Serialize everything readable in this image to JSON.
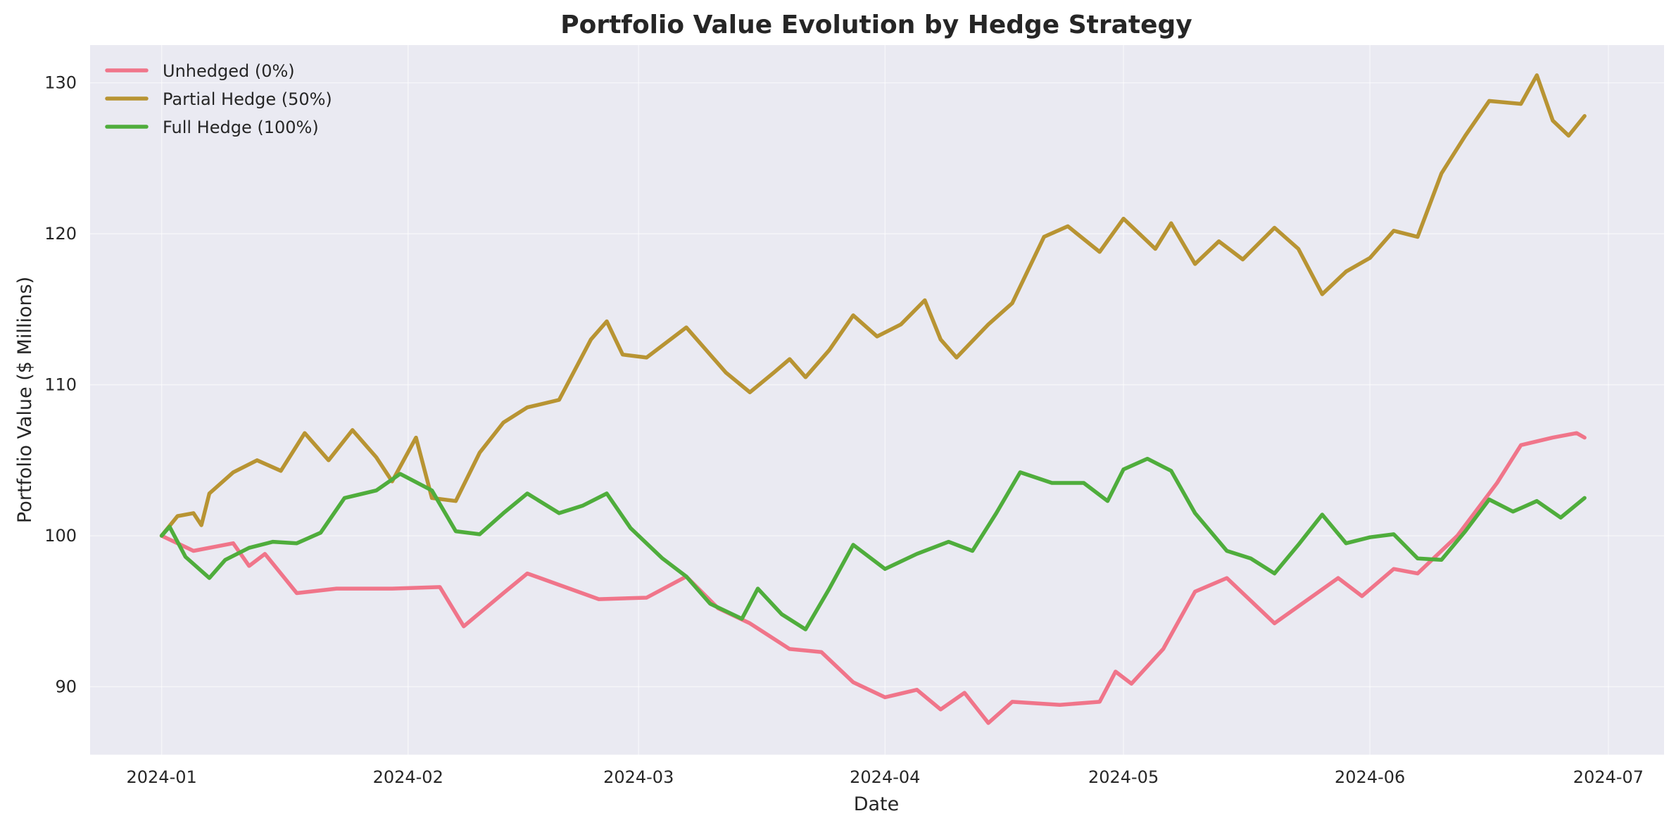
{
  "chart_data": {
    "type": "line",
    "title": "Portfolio Value Evolution by Hedge Strategy",
    "xlabel": "Date",
    "ylabel": "Portfolio Value ($ Millions)",
    "x_start": "2024-01-01",
    "x_range": [
      "2023-12-23",
      "2024-07-08"
    ],
    "ylim": [
      85.5,
      132.5
    ],
    "x_ticks": [
      "2024-01",
      "2024-02",
      "2024-03",
      "2024-04",
      "2024-05",
      "2024-06",
      "2024-07"
    ],
    "x_tick_dates": [
      "2024-01-01",
      "2024-02-01",
      "2024-03-01",
      "2024-04-01",
      "2024-05-01",
      "2024-06-01",
      "2024-07-01"
    ],
    "y_ticks": [
      90,
      100,
      110,
      120,
      130
    ],
    "grid": true,
    "background": "#eaeaf2",
    "legend_position": "top-left",
    "series": [
      {
        "name": "Unhedged (0%)",
        "color": "#f0758a",
        "points": [
          [
            "2024-01-01",
            100.0
          ],
          [
            "2024-01-05",
            99.0
          ],
          [
            "2024-01-10",
            99.5
          ],
          [
            "2024-01-12",
            98.0
          ],
          [
            "2024-01-14",
            98.8
          ],
          [
            "2024-01-18",
            96.2
          ],
          [
            "2024-01-23",
            96.5
          ],
          [
            "2024-01-30",
            96.5
          ],
          [
            "2024-02-05",
            96.6
          ],
          [
            "2024-02-08",
            94.0
          ],
          [
            "2024-02-13",
            96.2
          ],
          [
            "2024-02-16",
            97.5
          ],
          [
            "2024-02-25",
            95.8
          ],
          [
            "2024-03-02",
            95.9
          ],
          [
            "2024-03-07",
            97.3
          ],
          [
            "2024-03-11",
            95.2
          ],
          [
            "2024-03-15",
            94.2
          ],
          [
            "2024-03-20",
            92.5
          ],
          [
            "2024-03-24",
            92.3
          ],
          [
            "2024-03-28",
            90.3
          ],
          [
            "2024-04-01",
            89.3
          ],
          [
            "2024-04-05",
            89.8
          ],
          [
            "2024-04-08",
            88.5
          ],
          [
            "2024-04-11",
            89.6
          ],
          [
            "2024-04-14",
            87.6
          ],
          [
            "2024-04-17",
            89.0
          ],
          [
            "2024-04-23",
            88.8
          ],
          [
            "2024-04-28",
            89.0
          ],
          [
            "2024-04-30",
            91.0
          ],
          [
            "2024-05-02",
            90.2
          ],
          [
            "2024-05-06",
            92.5
          ],
          [
            "2024-05-10",
            96.3
          ],
          [
            "2024-05-14",
            97.2
          ],
          [
            "2024-05-20",
            94.2
          ],
          [
            "2024-05-28",
            97.2
          ],
          [
            "2024-05-31",
            96.0
          ],
          [
            "2024-06-04",
            97.8
          ],
          [
            "2024-06-07",
            97.5
          ],
          [
            "2024-06-12",
            100.0
          ],
          [
            "2024-06-17",
            103.5
          ],
          [
            "2024-06-20",
            106.0
          ],
          [
            "2024-06-24",
            106.5
          ],
          [
            "2024-06-27",
            106.8
          ],
          [
            "2024-06-28",
            106.5
          ]
        ]
      },
      {
        "name": "Partial Hedge (50%)",
        "color": "#b89433",
        "points": [
          [
            "2024-01-01",
            100.0
          ],
          [
            "2024-01-03",
            101.3
          ],
          [
            "2024-01-05",
            101.5
          ],
          [
            "2024-01-06",
            100.7
          ],
          [
            "2024-01-07",
            102.8
          ],
          [
            "2024-01-10",
            104.2
          ],
          [
            "2024-01-13",
            105.0
          ],
          [
            "2024-01-16",
            104.3
          ],
          [
            "2024-01-19",
            106.8
          ],
          [
            "2024-01-22",
            105.0
          ],
          [
            "2024-01-25",
            107.0
          ],
          [
            "2024-01-28",
            105.2
          ],
          [
            "2024-01-30",
            103.6
          ],
          [
            "2024-02-02",
            106.5
          ],
          [
            "2024-02-04",
            102.5
          ],
          [
            "2024-02-07",
            102.3
          ],
          [
            "2024-02-10",
            105.5
          ],
          [
            "2024-02-13",
            107.5
          ],
          [
            "2024-02-16",
            108.5
          ],
          [
            "2024-02-20",
            109.0
          ],
          [
            "2024-02-24",
            113.0
          ],
          [
            "2024-02-26",
            114.2
          ],
          [
            "2024-02-28",
            112.0
          ],
          [
            "2024-03-02",
            111.8
          ],
          [
            "2024-03-07",
            113.8
          ],
          [
            "2024-03-12",
            110.8
          ],
          [
            "2024-03-15",
            109.5
          ],
          [
            "2024-03-18",
            110.8
          ],
          [
            "2024-03-20",
            111.7
          ],
          [
            "2024-03-22",
            110.5
          ],
          [
            "2024-03-25",
            112.3
          ],
          [
            "2024-03-28",
            114.6
          ],
          [
            "2024-03-31",
            113.2
          ],
          [
            "2024-04-03",
            114.0
          ],
          [
            "2024-04-06",
            115.6
          ],
          [
            "2024-04-08",
            113.0
          ],
          [
            "2024-04-10",
            111.8
          ],
          [
            "2024-04-14",
            114.0
          ],
          [
            "2024-04-17",
            115.4
          ],
          [
            "2024-04-21",
            119.8
          ],
          [
            "2024-04-24",
            120.5
          ],
          [
            "2024-04-28",
            118.8
          ],
          [
            "2024-05-01",
            121.0
          ],
          [
            "2024-05-05",
            119.0
          ],
          [
            "2024-05-07",
            120.7
          ],
          [
            "2024-05-10",
            118.0
          ],
          [
            "2024-05-13",
            119.5
          ],
          [
            "2024-05-16",
            118.3
          ],
          [
            "2024-05-20",
            120.4
          ],
          [
            "2024-05-23",
            119.0
          ],
          [
            "2024-05-26",
            116.0
          ],
          [
            "2024-05-29",
            117.5
          ],
          [
            "2024-06-01",
            118.4
          ],
          [
            "2024-06-04",
            120.2
          ],
          [
            "2024-06-07",
            119.8
          ],
          [
            "2024-06-10",
            124.0
          ],
          [
            "2024-06-13",
            126.5
          ],
          [
            "2024-06-16",
            128.8
          ],
          [
            "2024-06-20",
            128.6
          ],
          [
            "2024-06-22",
            130.5
          ],
          [
            "2024-06-24",
            127.5
          ],
          [
            "2024-06-26",
            126.5
          ],
          [
            "2024-06-28",
            127.8
          ]
        ]
      },
      {
        "name": "Full Hedge (100%)",
        "color": "#4fad3c",
        "points": [
          [
            "2024-01-01",
            100.0
          ],
          [
            "2024-01-02",
            100.6
          ],
          [
            "2024-01-04",
            98.6
          ],
          [
            "2024-01-07",
            97.2
          ],
          [
            "2024-01-09",
            98.4
          ],
          [
            "2024-01-12",
            99.2
          ],
          [
            "2024-01-15",
            99.6
          ],
          [
            "2024-01-18",
            99.5
          ],
          [
            "2024-01-21",
            100.2
          ],
          [
            "2024-01-24",
            102.5
          ],
          [
            "2024-01-28",
            103.0
          ],
          [
            "2024-01-31",
            104.1
          ],
          [
            "2024-02-04",
            103.0
          ],
          [
            "2024-02-07",
            100.3
          ],
          [
            "2024-02-10",
            100.1
          ],
          [
            "2024-02-13",
            101.5
          ],
          [
            "2024-02-16",
            102.8
          ],
          [
            "2024-02-20",
            101.5
          ],
          [
            "2024-02-23",
            102.0
          ],
          [
            "2024-02-26",
            102.8
          ],
          [
            "2024-02-29",
            100.5
          ],
          [
            "2024-03-04",
            98.5
          ],
          [
            "2024-03-07",
            97.3
          ],
          [
            "2024-03-10",
            95.5
          ],
          [
            "2024-03-14",
            94.5
          ],
          [
            "2024-03-16",
            96.5
          ],
          [
            "2024-03-19",
            94.8
          ],
          [
            "2024-03-22",
            93.8
          ],
          [
            "2024-03-25",
            96.5
          ],
          [
            "2024-03-28",
            99.4
          ],
          [
            "2024-04-01",
            97.8
          ],
          [
            "2024-04-05",
            98.8
          ],
          [
            "2024-04-09",
            99.6
          ],
          [
            "2024-04-12",
            99.0
          ],
          [
            "2024-04-15",
            101.5
          ],
          [
            "2024-04-18",
            104.2
          ],
          [
            "2024-04-22",
            103.5
          ],
          [
            "2024-04-26",
            103.5
          ],
          [
            "2024-04-29",
            102.3
          ],
          [
            "2024-05-01",
            104.4
          ],
          [
            "2024-05-04",
            105.1
          ],
          [
            "2024-05-07",
            104.3
          ],
          [
            "2024-05-10",
            101.5
          ],
          [
            "2024-05-14",
            99.0
          ],
          [
            "2024-05-17",
            98.5
          ],
          [
            "2024-05-20",
            97.5
          ],
          [
            "2024-05-23",
            99.4
          ],
          [
            "2024-05-26",
            101.4
          ],
          [
            "2024-05-29",
            99.5
          ],
          [
            "2024-06-01",
            99.9
          ],
          [
            "2024-06-04",
            100.1
          ],
          [
            "2024-06-07",
            98.5
          ],
          [
            "2024-06-10",
            98.4
          ],
          [
            "2024-06-13",
            100.3
          ],
          [
            "2024-06-16",
            102.4
          ],
          [
            "2024-06-19",
            101.6
          ],
          [
            "2024-06-22",
            102.3
          ],
          [
            "2024-06-25",
            101.2
          ],
          [
            "2024-06-28",
            102.5
          ]
        ]
      }
    ]
  }
}
